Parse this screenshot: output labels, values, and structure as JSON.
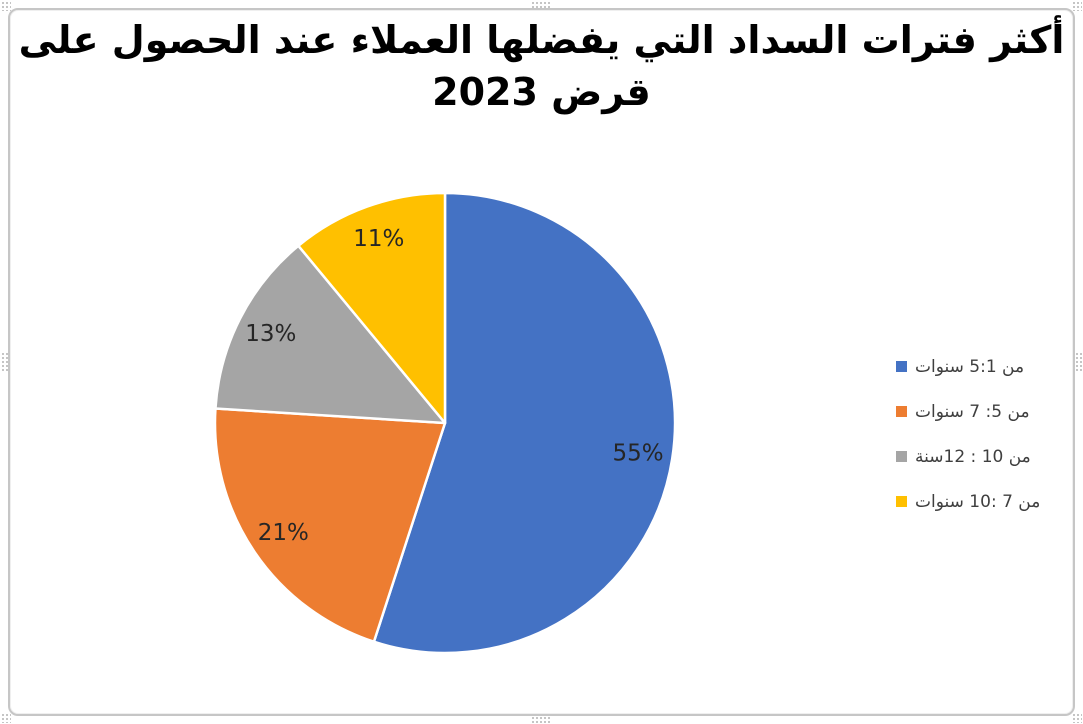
{
  "title": {
    "line1": "أكثر فترات السداد التي يفضلها العملاء عند الحصول على",
    "line2": "قرض 2023"
  },
  "legend": {
    "position": "right",
    "items": [
      {
        "label": "من 5:1 سنوات",
        "color": "#4472C4"
      },
      {
        "label": "من 5: 7 سنوات",
        "color": "#ED7D31"
      },
      {
        "label": "من 10 : 12سنة",
        "color": "#A5A5A5"
      },
      {
        "label": "من 7 :10 سنوات",
        "color": "#FFC000"
      }
    ]
  },
  "chart_data": {
    "type": "pie",
    "title": "أكثر فترات السداد التي يفضلها العملاء عند الحصول على قرض 2023",
    "categories": [
      "من 5:1 سنوات",
      "من 5: 7 سنوات",
      "من 10 : 12سنة",
      "من 7 :10 سنوات"
    ],
    "values": [
      55,
      21,
      13,
      11
    ],
    "data_labels": [
      "55%",
      "21%",
      "13%",
      "11%"
    ],
    "colors": [
      "#4472C4",
      "#ED7D31",
      "#A5A5A5",
      "#FFC000"
    ],
    "start_angle_deg": 0,
    "direction": "clockwise",
    "legend_position": "right",
    "slice_border_color": "#FFFFFF",
    "label_color": "#262626",
    "background": "#FFFFFF",
    "frame_border_color": "#C6C6C6"
  }
}
